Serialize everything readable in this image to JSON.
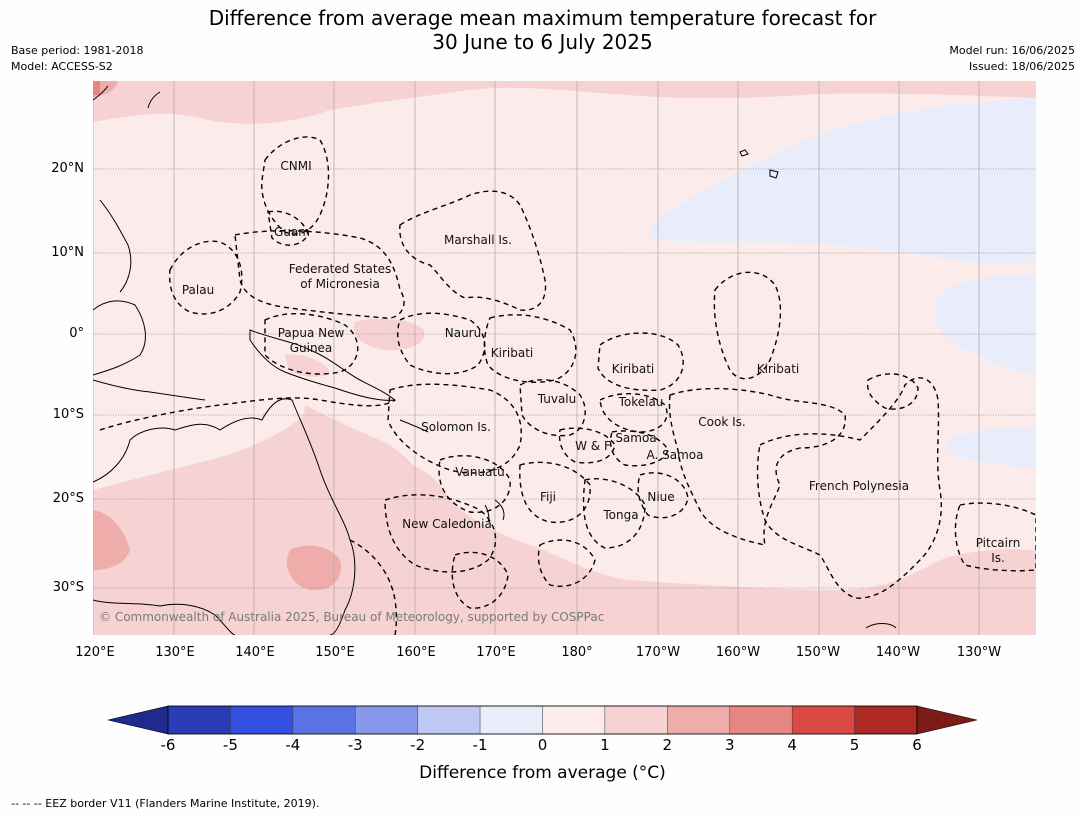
{
  "title_line1": "Difference from average mean maximum temperature forecast for",
  "title_line2": "30 June to 6 July 2025",
  "meta_left": [
    "Base period: 1981-2018",
    "Model: ACCESS-S2"
  ],
  "meta_right": [
    "Model run: 16/06/2025",
    "Issued: 18/06/2025"
  ],
  "latitudes": [
    "20°N",
    "10°N",
    "0°",
    "10°S",
    "20°S",
    "30°S"
  ],
  "longitudes": [
    "120°E",
    "130°E",
    "140°E",
    "150°E",
    "160°E",
    "170°E",
    "180°",
    "170°W",
    "160°W",
    "150°W",
    "140°W",
    "130°W"
  ],
  "places": [
    "CNMI",
    "Guam",
    "Marshall Is.",
    "Federated States",
    "of Micronesia",
    "Palau",
    "Papua New",
    "Guinea",
    "Nauru",
    "Kiribati",
    "Kiribati",
    "Kiribati",
    "Tuvalu",
    "Tokelau",
    "Cook Is.",
    "Solomon Is.",
    "W & F",
    "Samoa",
    "A. Samoa",
    "Vanuatu",
    "Fiji",
    "Niue",
    "Tonga",
    "French Polynesia",
    "New Caledonia",
    "Pitcairn",
    "Is."
  ],
  "copyright": "© Commonwealth of Australia 2025, Bureau of Meteorology, supported by COSPPac",
  "colorbar": {
    "ticks": [
      "-6",
      "-5",
      "-4",
      "-3",
      "-2",
      "-1",
      "0",
      "1",
      "2",
      "3",
      "4",
      "5",
      "6"
    ],
    "colors": [
      "#1e2b8c",
      "#2a3cb5",
      "#3350e0",
      "#5a72e4",
      "#8797ea",
      "#bfc8f2",
      "#e8ecfb",
      "#fbeceb",
      "#f6d3d2",
      "#eeacaa",
      "#e68582",
      "#db4a42",
      "#ac2a23",
      "#7d1b17"
    ],
    "label": "Difference from average (°C)"
  },
  "footnote": "--  --  -- EEZ border V11 (Flanders Marine Institute, 2019)."
}
